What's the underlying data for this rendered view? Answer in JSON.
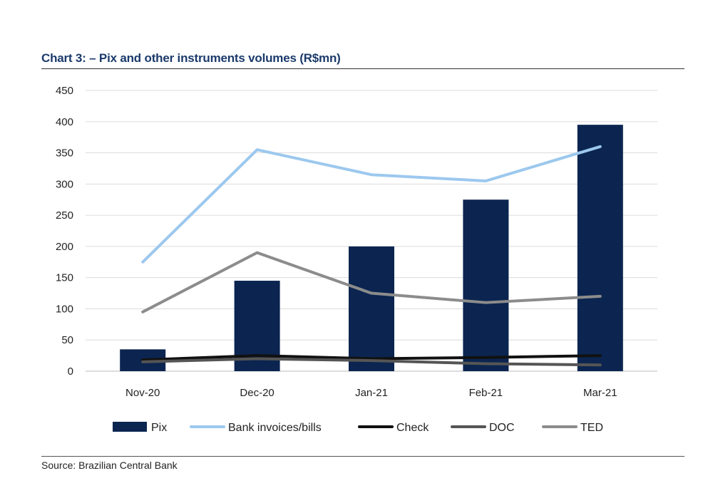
{
  "title": "Chart 3: –  Pix and other instruments volumes (R$mn)",
  "source": "Source: Brazilian Central Bank",
  "chart_data": {
    "type": "bar",
    "categories": [
      "Nov-20",
      "Dec-20",
      "Jan-21",
      "Feb-21",
      "Mar-21"
    ],
    "ylim": [
      0,
      450
    ],
    "yticks": [
      0,
      50,
      100,
      150,
      200,
      250,
      300,
      350,
      400,
      450
    ],
    "grid": true,
    "legend_position": "bottom",
    "series": [
      {
        "name": "Pix",
        "type": "bar",
        "color": "#0b2550",
        "values": [
          35,
          145,
          200,
          275,
          395
        ]
      },
      {
        "name": "Bank invoices/bills",
        "type": "line",
        "color": "#9cc8ee",
        "values": [
          175,
          355,
          315,
          305,
          360
        ]
      },
      {
        "name": "Check",
        "type": "line",
        "color": "#111111",
        "values": [
          18,
          25,
          20,
          22,
          25
        ]
      },
      {
        "name": "DOC",
        "type": "line",
        "color": "#555555",
        "values": [
          15,
          20,
          17,
          12,
          10
        ]
      },
      {
        "name": "TED",
        "type": "line",
        "color": "#8c8c8c",
        "values": [
          95,
          190,
          125,
          110,
          120
        ]
      }
    ]
  }
}
